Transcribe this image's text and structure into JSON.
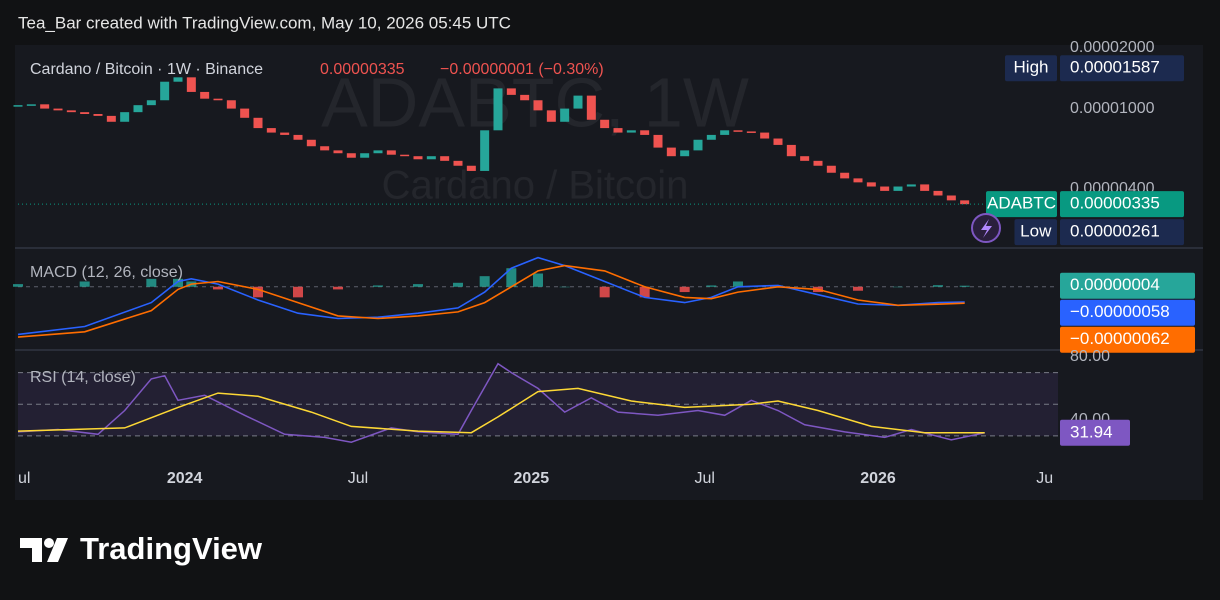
{
  "header": {
    "attribution": "Tea_Bar created with TradingView.com, May 10, 2026 05:45 UTC"
  },
  "chart_data": [
    {
      "type": "candlestick",
      "legend_text": "Cardano / Bitcoin · 1W · Binance",
      "last_price_text": "0.00000335",
      "change_text": "−0.00000001 (−0.30%)",
      "watermark": [
        "ADABTC, 1W",
        "Cardano / Bitcoin"
      ],
      "x": [
        0,
        2,
        4,
        6,
        8,
        10,
        12,
        14,
        16,
        18,
        20,
        22,
        24,
        26,
        28,
        30,
        32,
        34,
        36,
        38,
        40,
        42,
        44,
        46,
        48,
        50,
        52,
        54,
        56,
        58,
        60,
        62,
        64,
        66,
        68,
        70,
        72,
        74,
        76,
        78,
        80,
        82,
        84,
        86,
        88,
        90,
        92,
        94,
        96,
        98,
        100,
        102,
        104,
        106,
        108,
        110,
        112,
        114,
        116,
        118,
        120,
        122,
        124,
        126,
        128,
        130,
        132,
        134,
        136,
        138,
        140,
        142
      ],
      "values": [
        1.04e-05,
        1.05e-05,
        1e-05,
        9.8e-06,
        9.6e-06,
        9.4e-06,
        9.2e-06,
        8.6e-06,
        9.6e-06,
        1.04e-05,
        1.1e-05,
        1.36e-05,
        1.43e-05,
        1.21e-05,
        1.12e-05,
        1.1e-05,
        1e-05,
        9e-06,
        8e-06,
        7.6e-06,
        7.4e-06,
        7e-06,
        6.5e-06,
        6.2e-06,
        6e-06,
        5.7e-06,
        6e-06,
        6.2e-06,
        5.9e-06,
        5.8e-06,
        5.6e-06,
        5.8e-06,
        5.5e-06,
        5.2e-06,
        4.9e-06,
        7.8e-06,
        1.26e-05,
        1.17e-05,
        1.1e-05,
        9.8e-06,
        8.6e-06,
        1e-05,
        1.16e-05,
        8.8e-06,
        8e-06,
        7.6e-06,
        7.8e-06,
        7.4e-06,
        6.4e-06,
        5.8e-06,
        6.2e-06,
        7e-06,
        7.4e-06,
        7.8e-06,
        7.7e-06,
        7.6e-06,
        7.1e-06,
        6.6e-06,
        5.8e-06,
        5.5e-06,
        5.2e-06,
        4.8e-06,
        4.5e-06,
        4.3e-06,
        4.1e-06,
        3.9e-06,
        4.1e-06,
        4.2e-06,
        3.9e-06,
        3.7e-06,
        3.5e-06,
        3.35e-06
      ],
      "xlim": [
        0,
        156
      ],
      "log_scale": true,
      "ylim": [
        2.1e-06,
        2.07e-05
      ],
      "yticks": [
        {
          "value": 2e-05,
          "label": "0.00002000"
        },
        {
          "value": 1e-05,
          "label": "0.00001000"
        },
        {
          "value": 4e-06,
          "label": "0.00000400"
        }
      ],
      "up_color": "#26a69a",
      "down_color": "#ef5350",
      "price_line": true,
      "markers": [
        {
          "label": "High",
          "value": 1.587e-05,
          "value_label": "0.00001587",
          "color": "#1c2a4f"
        },
        {
          "label": "ADABTC",
          "value": 3.35e-06,
          "value_label": "0.00000335",
          "color": "#089981"
        },
        {
          "label": "Low",
          "value": 2.61e-06,
          "value_label": "0.00000261",
          "color": "#1c2a4f"
        }
      ]
    },
    {
      "type": "macd",
      "legend_text": "MACD (12, 26, close)",
      "x": [
        0,
        10,
        20,
        24,
        26,
        30,
        36,
        42,
        48,
        54,
        60,
        66,
        70,
        74,
        78,
        82,
        88,
        94,
        100,
        104,
        108,
        114,
        120,
        126,
        132,
        138,
        142
      ],
      "xlim": [
        0,
        156
      ],
      "ylim": [
        -2.2e-06,
        1.2e-06
      ],
      "zero_line": true,
      "series": [
        {
          "type": "bar",
          "color": "#26a69a",
          "negative_color": "#ff5252",
          "values": [
            1e-07,
            2e-07,
            3e-07,
            3e-07,
            2e-07,
            -1e-07,
            -4e-07,
            -4e-07,
            -1e-07,
            5e-08,
            1e-07,
            1.5e-07,
            4e-07,
            7e-07,
            5e-07,
            0,
            -4e-07,
            -4e-07,
            -2e-07,
            5e-08,
            2e-07,
            5e-08,
            -2e-07,
            -1.5e-07,
            0,
            6e-08,
            4e-08
          ],
          "value_labels": [
            null,
            null,
            null,
            null,
            null,
            null,
            null,
            null,
            null,
            null,
            null,
            null,
            null,
            null,
            null,
            null,
            null,
            null,
            null,
            null,
            null,
            null,
            null,
            null,
            null,
            null,
            "0.00000004"
          ]
        },
        {
          "type": "line",
          "color": "#2962ff",
          "values": [
            -1.8e-06,
            -1.5e-06,
            -6e-07,
            2e-07,
            3e-07,
            1e-07,
            -5e-07,
            -1e-06,
            -1.2e-06,
            -1.15e-06,
            -1e-06,
            -8e-07,
            -2e-07,
            7e-07,
            1.1e-06,
            8e-07,
            2e-07,
            -4e-07,
            -6e-07,
            -4e-07,
            0,
            5e-08,
            -3e-07,
            -6.5e-07,
            -7e-07,
            -6e-07,
            -5.8e-07
          ],
          "value_labels": [
            null,
            null,
            null,
            null,
            null,
            null,
            null,
            null,
            null,
            null,
            null,
            null,
            null,
            null,
            null,
            null,
            null,
            null,
            null,
            null,
            null,
            null,
            null,
            null,
            null,
            null,
            "−0.00000058"
          ]
        },
        {
          "type": "line",
          "color": "#ff6d00",
          "values": [
            -1.9e-06,
            -1.7e-06,
            -9e-07,
            -1e-07,
            1e-07,
            2e-07,
            -1e-07,
            -6e-07,
            -1.1e-06,
            -1.2e-06,
            -1.1e-06,
            -9.5e-07,
            -6e-07,
            0,
            6e-07,
            8e-07,
            6e-07,
            0,
            -4e-07,
            -4.5e-07,
            -2e-07,
            0,
            -1e-07,
            -5e-07,
            -7e-07,
            -6.6e-07,
            -6.2e-07
          ],
          "value_labels": [
            null,
            null,
            null,
            null,
            null,
            null,
            null,
            null,
            null,
            null,
            null,
            null,
            null,
            null,
            null,
            null,
            null,
            null,
            null,
            null,
            null,
            null,
            null,
            null,
            null,
            null,
            "−0.00000062"
          ]
        }
      ]
    },
    {
      "type": "rsi",
      "legend_text": "RSI (14, close)",
      "xlim": [
        0,
        156
      ],
      "ylim": [
        16,
        83
      ],
      "yticks": [
        {
          "value": 80,
          "label": "80.00"
        },
        {
          "value": 40,
          "label": "40.00"
        }
      ],
      "levels": [
        70,
        50,
        30
      ],
      "band_color": "#7e57c2",
      "xticks": [
        {
          "value": 0,
          "label": "ul"
        },
        {
          "value": 25,
          "label": "2024"
        },
        {
          "value": 51,
          "label": "Jul"
        },
        {
          "value": 77,
          "label": "2025"
        },
        {
          "value": 103,
          "label": "Jul"
        },
        {
          "value": 129,
          "label": "2026"
        },
        {
          "value": 154,
          "label": "Ju"
        }
      ],
      "series": [
        {
          "color": "#7e57c2",
          "x": [
            0,
            6,
            12,
            16,
            20,
            22,
            24,
            28,
            34,
            40,
            46,
            50,
            56,
            60,
            66,
            68,
            72,
            74,
            78,
            82,
            86,
            90,
            96,
            102,
            106,
            110,
            114,
            118,
            124,
            130,
            134,
            140,
            145
          ],
          "values": [
            32.5,
            34,
            31,
            46,
            66,
            68,
            52.5,
            55.6,
            43,
            31,
            29,
            26,
            35,
            32.5,
            31,
            46,
            75.6,
            70,
            60,
            45,
            54,
            45,
            43,
            46,
            43,
            52.5,
            46,
            37,
            32.5,
            29,
            34,
            27.5,
            31.94
          ],
          "show_last": true
        },
        {
          "color": "#fdd835",
          "x": [
            0,
            16,
            24,
            30,
            36,
            44,
            50,
            60,
            68,
            72,
            78,
            84,
            92,
            100,
            110,
            114,
            120,
            128,
            136,
            145
          ],
          "values": [
            33,
            35,
            48,
            57,
            55,
            45,
            36,
            33,
            32,
            42,
            58,
            60,
            52,
            48,
            50,
            52,
            46,
            36,
            32,
            32
          ]
        }
      ]
    }
  ],
  "footer": {
    "logo": "TradingView"
  }
}
